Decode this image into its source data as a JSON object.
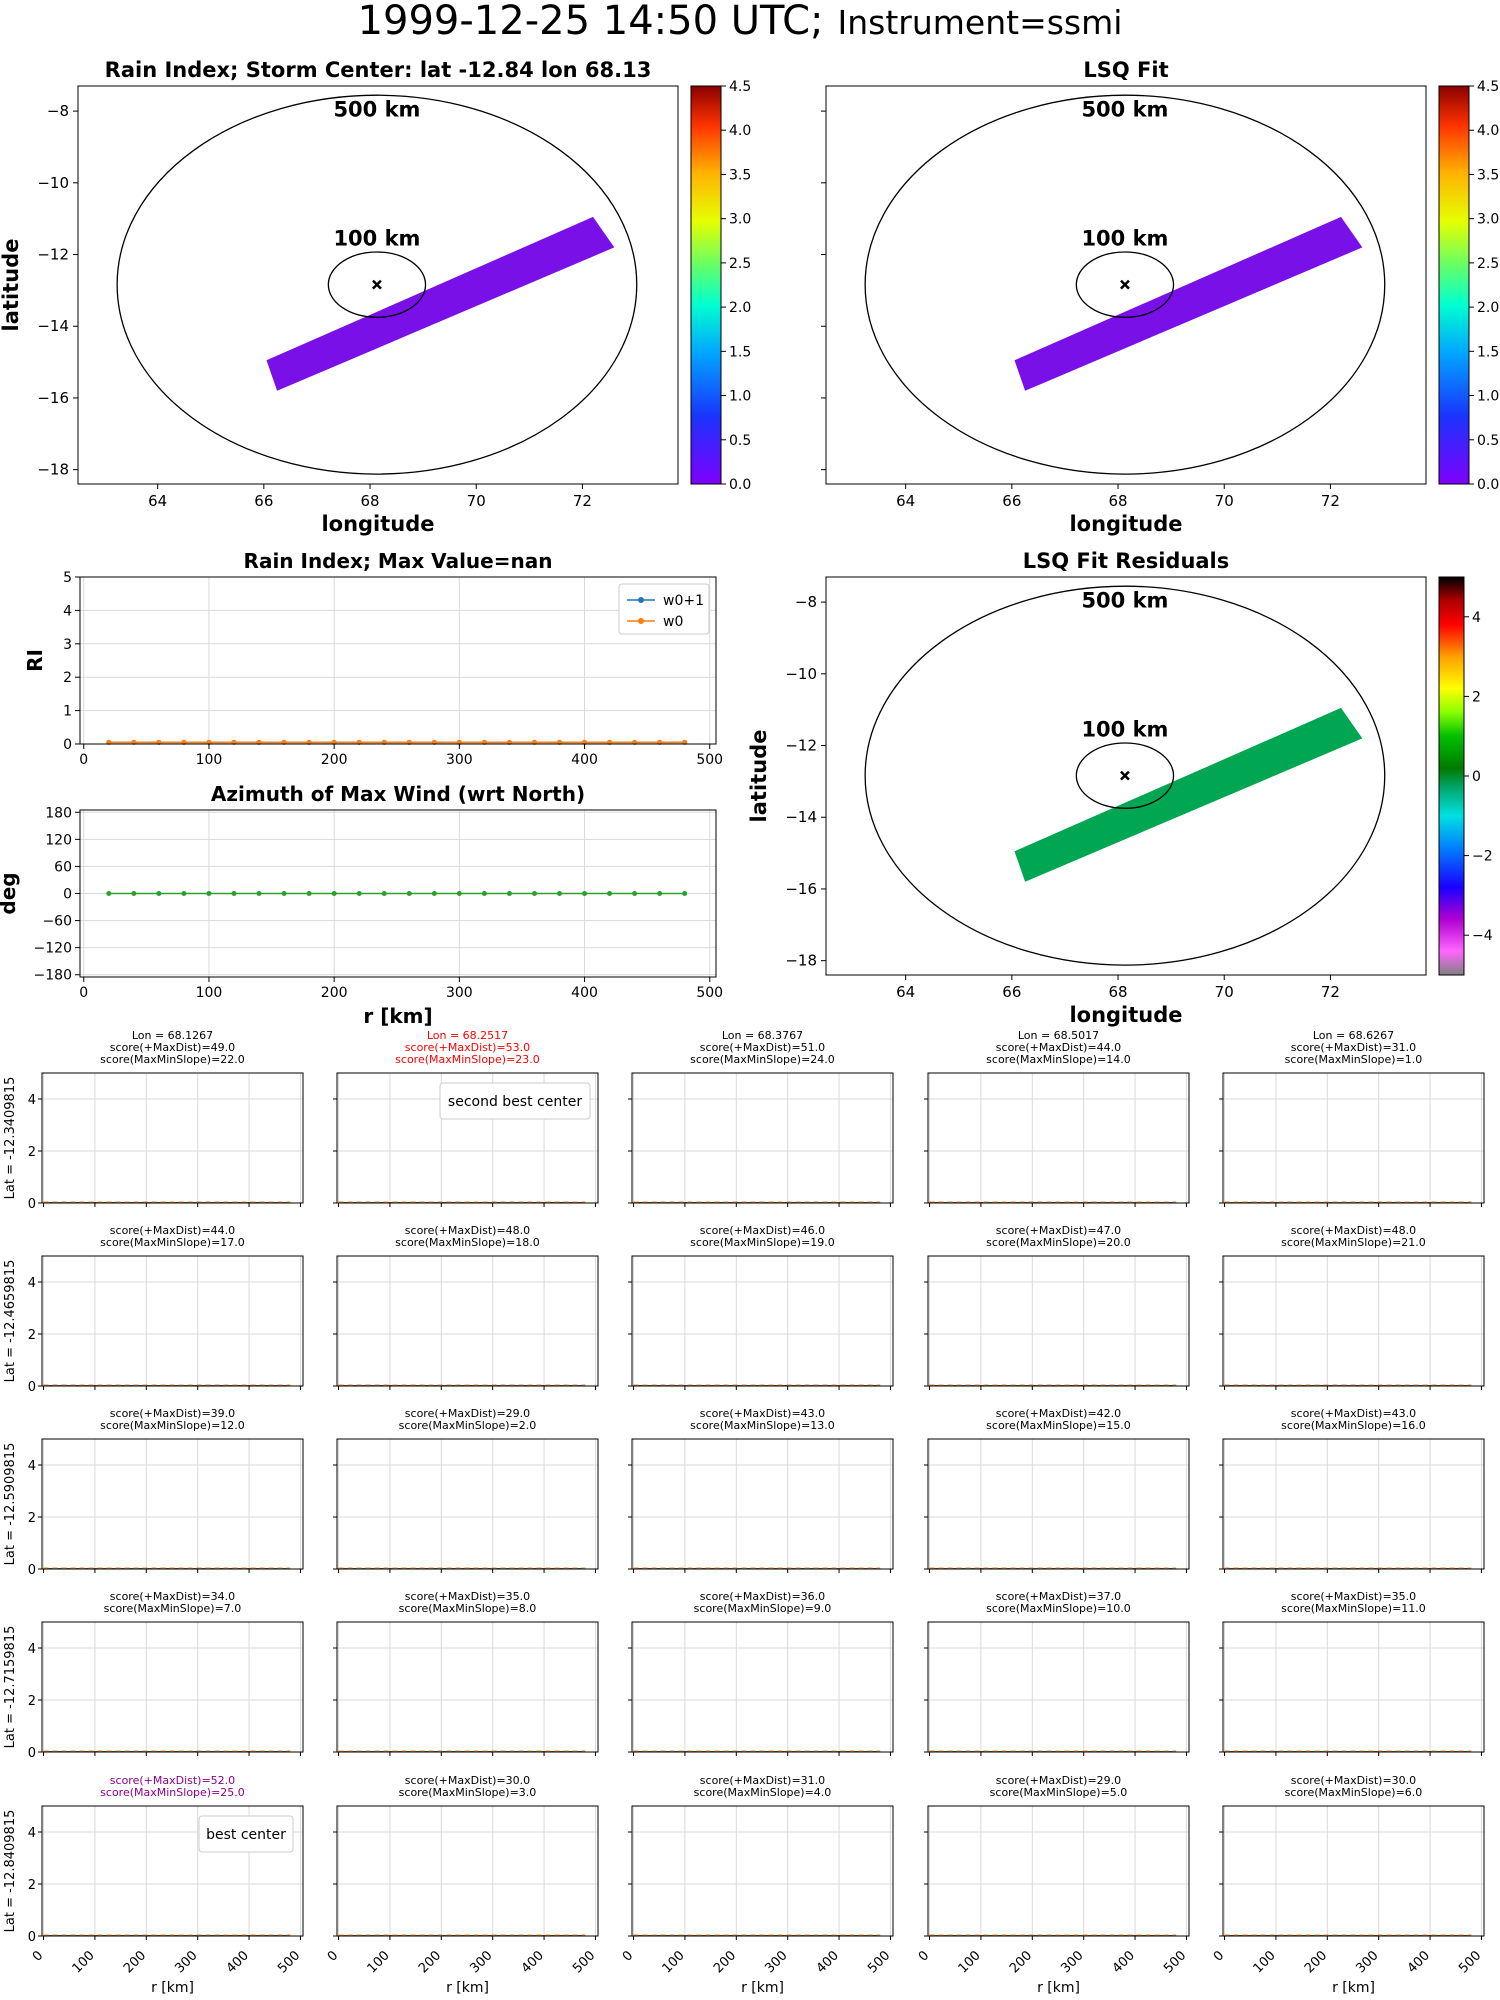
{
  "header": {
    "datetime": "1999-12-25 14:50 UTC;",
    "instrument": "Instrument=ssmi"
  },
  "colors": {
    "swath": "#7a10e8",
    "residual": "#00a651",
    "w0p1": "#1f77b4",
    "w0": "#ff7f0e",
    "azimuth": "#2ca02c",
    "highlight_red": "#ff0000",
    "highlight_purple": "#8b008b",
    "grid": "#d9d9d9"
  },
  "chart_data": [
    {
      "id": "rain-index-map",
      "type": "map",
      "title": "Rain Index; Storm Center: lat -12.84 lon 68.13",
      "xlabel": "longitude",
      "ylabel": "latitude",
      "xlim": [
        62.5,
        73.8
      ],
      "ylim": [
        -18.4,
        -7.3
      ],
      "xticks": [
        "64",
        "66",
        "68",
        "70",
        "72"
      ],
      "yticks": [
        "−8",
        "−10",
        "−12",
        "−14",
        "−16",
        "−18"
      ],
      "center": {
        "lon": 68.13,
        "lat": -12.84
      },
      "rings": [
        {
          "label": "500 km",
          "radius_km": 500
        },
        {
          "label": "100 km",
          "radius_km": 100
        }
      ],
      "swath_color": "#7a10e8",
      "colorbar": {
        "min": 0.0,
        "max": 4.5,
        "ticks": [
          "0.0",
          "0.5",
          "1.0",
          "1.5",
          "2.0",
          "2.5",
          "3.0",
          "3.5",
          "4.0",
          "4.5"
        ],
        "colormap": "rainbow"
      }
    },
    {
      "id": "lsq-fit-map",
      "type": "map",
      "title": "LSQ Fit",
      "xlabel": "longitude",
      "ylabel": "",
      "xticks": [
        "64",
        "66",
        "68",
        "70",
        "72"
      ],
      "rings": [
        {
          "label": "500 km",
          "radius_km": 500
        },
        {
          "label": "100 km",
          "radius_km": 100
        }
      ],
      "swath_color": "#7a10e8",
      "colorbar": {
        "min": 0.0,
        "max": 4.5,
        "ticks": [
          "0.0",
          "0.5",
          "1.0",
          "1.5",
          "2.0",
          "2.5",
          "3.0",
          "3.5",
          "4.0",
          "4.5"
        ],
        "colormap": "rainbow"
      }
    },
    {
      "id": "rain-index-profile",
      "type": "line",
      "title": "Rain Index; Max Value=nan",
      "xlabel": "",
      "ylabel": "RI",
      "xlim": [
        -3,
        505
      ],
      "ylim": [
        0,
        5
      ],
      "xticks": [
        "0",
        "100",
        "200",
        "300",
        "400",
        "500"
      ],
      "yticks": [
        "0",
        "1",
        "2",
        "3",
        "4",
        "5"
      ],
      "legend": "top-right",
      "x": [
        20,
        40,
        60,
        80,
        100,
        120,
        140,
        160,
        180,
        200,
        220,
        240,
        260,
        280,
        300,
        320,
        340,
        360,
        380,
        400,
        420,
        440,
        460,
        480
      ],
      "series": [
        {
          "name": "w0+1",
          "values": [
            0.05,
            0.05,
            0.05,
            0.05,
            0.05,
            0.05,
            0.05,
            0.05,
            0.05,
            0.05,
            0.05,
            0.05,
            0.05,
            0.05,
            0.05,
            0.05,
            0.05,
            0.05,
            0.05,
            0.05,
            0.05,
            0.05,
            0.05,
            0.05
          ]
        },
        {
          "name": "w0",
          "values": [
            0.05,
            0.05,
            0.05,
            0.05,
            0.05,
            0.05,
            0.05,
            0.05,
            0.05,
            0.05,
            0.05,
            0.05,
            0.05,
            0.05,
            0.05,
            0.05,
            0.05,
            0.05,
            0.05,
            0.05,
            0.05,
            0.05,
            0.05,
            0.05
          ]
        }
      ]
    },
    {
      "id": "azimuth-profile",
      "type": "line",
      "title": "Azimuth of Max Wind (wrt North)",
      "xlabel": "r [km]",
      "ylabel": "deg",
      "xlim": [
        -3,
        505
      ],
      "ylim": [
        -185,
        185
      ],
      "xticks": [
        "0",
        "100",
        "200",
        "300",
        "400",
        "500"
      ],
      "yticks": [
        "180",
        "120",
        "60",
        "0",
        "−60",
        "−120",
        "−180"
      ],
      "x": [
        20,
        40,
        60,
        80,
        100,
        120,
        140,
        160,
        180,
        200,
        220,
        240,
        260,
        280,
        300,
        320,
        340,
        360,
        380,
        400,
        420,
        440,
        460,
        480
      ],
      "values": [
        0,
        0,
        0,
        0,
        0,
        0,
        0,
        0,
        0,
        0,
        0,
        0,
        0,
        0,
        0,
        0,
        0,
        0,
        0,
        0,
        0,
        0,
        0,
        0
      ]
    },
    {
      "id": "lsq-residuals-map",
      "type": "map",
      "title": "LSQ Fit Residuals",
      "xlabel": "longitude",
      "ylabel": "latitude",
      "xticks": [
        "64",
        "66",
        "68",
        "70",
        "72"
      ],
      "yticks": [
        "−8",
        "−10",
        "−12",
        "−14",
        "−16",
        "−18"
      ],
      "rings": [
        {
          "label": "500 km",
          "radius_km": 500
        },
        {
          "label": "100 km",
          "radius_km": 100
        }
      ],
      "swath_color": "#00a651",
      "colorbar": {
        "min": -5,
        "max": 5,
        "ticks": [
          "4",
          "2",
          "0",
          "−2",
          "−4"
        ],
        "colormap": "nipy_spectral_gap"
      }
    },
    {
      "id": "center-search-grid",
      "type": "line",
      "xlabel": "r [km]",
      "xticks": [
        "0",
        "100",
        "200",
        "300",
        "400",
        "500"
      ],
      "yticks": [
        "0",
        "2",
        "4"
      ],
      "ylim": [
        0,
        5
      ],
      "xlim": [
        -3,
        505
      ],
      "lons": [
        "Lon = 68.1267",
        "Lon = 68.2517",
        "Lon = 68.3767",
        "Lon = 68.5017",
        "Lon = 68.6267"
      ],
      "lats": [
        "Lat = -12.3409815",
        "Lat = -12.4659815",
        "Lat = -12.5909815",
        "Lat = -12.7159815",
        "Lat = -12.8409815"
      ],
      "scores": [
        [
          [
            "score(+MaxDist)=49.0",
            "score(MaxMinSlope)=22.0"
          ],
          [
            "score(+MaxDist)=53.0",
            "score(MaxMinSlope)=23.0"
          ],
          [
            "score(+MaxDist)=51.0",
            "score(MaxMinSlope)=24.0"
          ],
          [
            "score(+MaxDist)=44.0",
            "score(MaxMinSlope)=14.0"
          ],
          [
            "score(+MaxDist)=31.0",
            "score(MaxMinSlope)=1.0"
          ]
        ],
        [
          [
            "score(+MaxDist)=44.0",
            "score(MaxMinSlope)=17.0"
          ],
          [
            "score(+MaxDist)=48.0",
            "score(MaxMinSlope)=18.0"
          ],
          [
            "score(+MaxDist)=46.0",
            "score(MaxMinSlope)=19.0"
          ],
          [
            "score(+MaxDist)=47.0",
            "score(MaxMinSlope)=20.0"
          ],
          [
            "score(+MaxDist)=48.0",
            "score(MaxMinSlope)=21.0"
          ]
        ],
        [
          [
            "score(+MaxDist)=39.0",
            "score(MaxMinSlope)=12.0"
          ],
          [
            "score(+MaxDist)=29.0",
            "score(MaxMinSlope)=2.0"
          ],
          [
            "score(+MaxDist)=43.0",
            "score(MaxMinSlope)=13.0"
          ],
          [
            "score(+MaxDist)=42.0",
            "score(MaxMinSlope)=15.0"
          ],
          [
            "score(+MaxDist)=43.0",
            "score(MaxMinSlope)=16.0"
          ]
        ],
        [
          [
            "score(+MaxDist)=34.0",
            "score(MaxMinSlope)=7.0"
          ],
          [
            "score(+MaxDist)=35.0",
            "score(MaxMinSlope)=8.0"
          ],
          [
            "score(+MaxDist)=36.0",
            "score(MaxMinSlope)=9.0"
          ],
          [
            "score(+MaxDist)=37.0",
            "score(MaxMinSlope)=10.0"
          ],
          [
            "score(+MaxDist)=35.0",
            "score(MaxMinSlope)=11.0"
          ]
        ],
        [
          [
            "score(+MaxDist)=52.0",
            "score(MaxMinSlope)=25.0"
          ],
          [
            "score(+MaxDist)=30.0",
            "score(MaxMinSlope)=3.0"
          ],
          [
            "score(+MaxDist)=31.0",
            "score(MaxMinSlope)=4.0"
          ],
          [
            "score(+MaxDist)=29.0",
            "score(MaxMinSlope)=5.0"
          ],
          [
            "score(+MaxDist)=30.0",
            "score(MaxMinSlope)=6.0"
          ]
        ]
      ],
      "second_best": {
        "row": 0,
        "col": 1,
        "label": "second best center"
      },
      "best": {
        "row": 4,
        "col": 0,
        "label": "best center"
      },
      "profile_value": 0.02
    }
  ]
}
